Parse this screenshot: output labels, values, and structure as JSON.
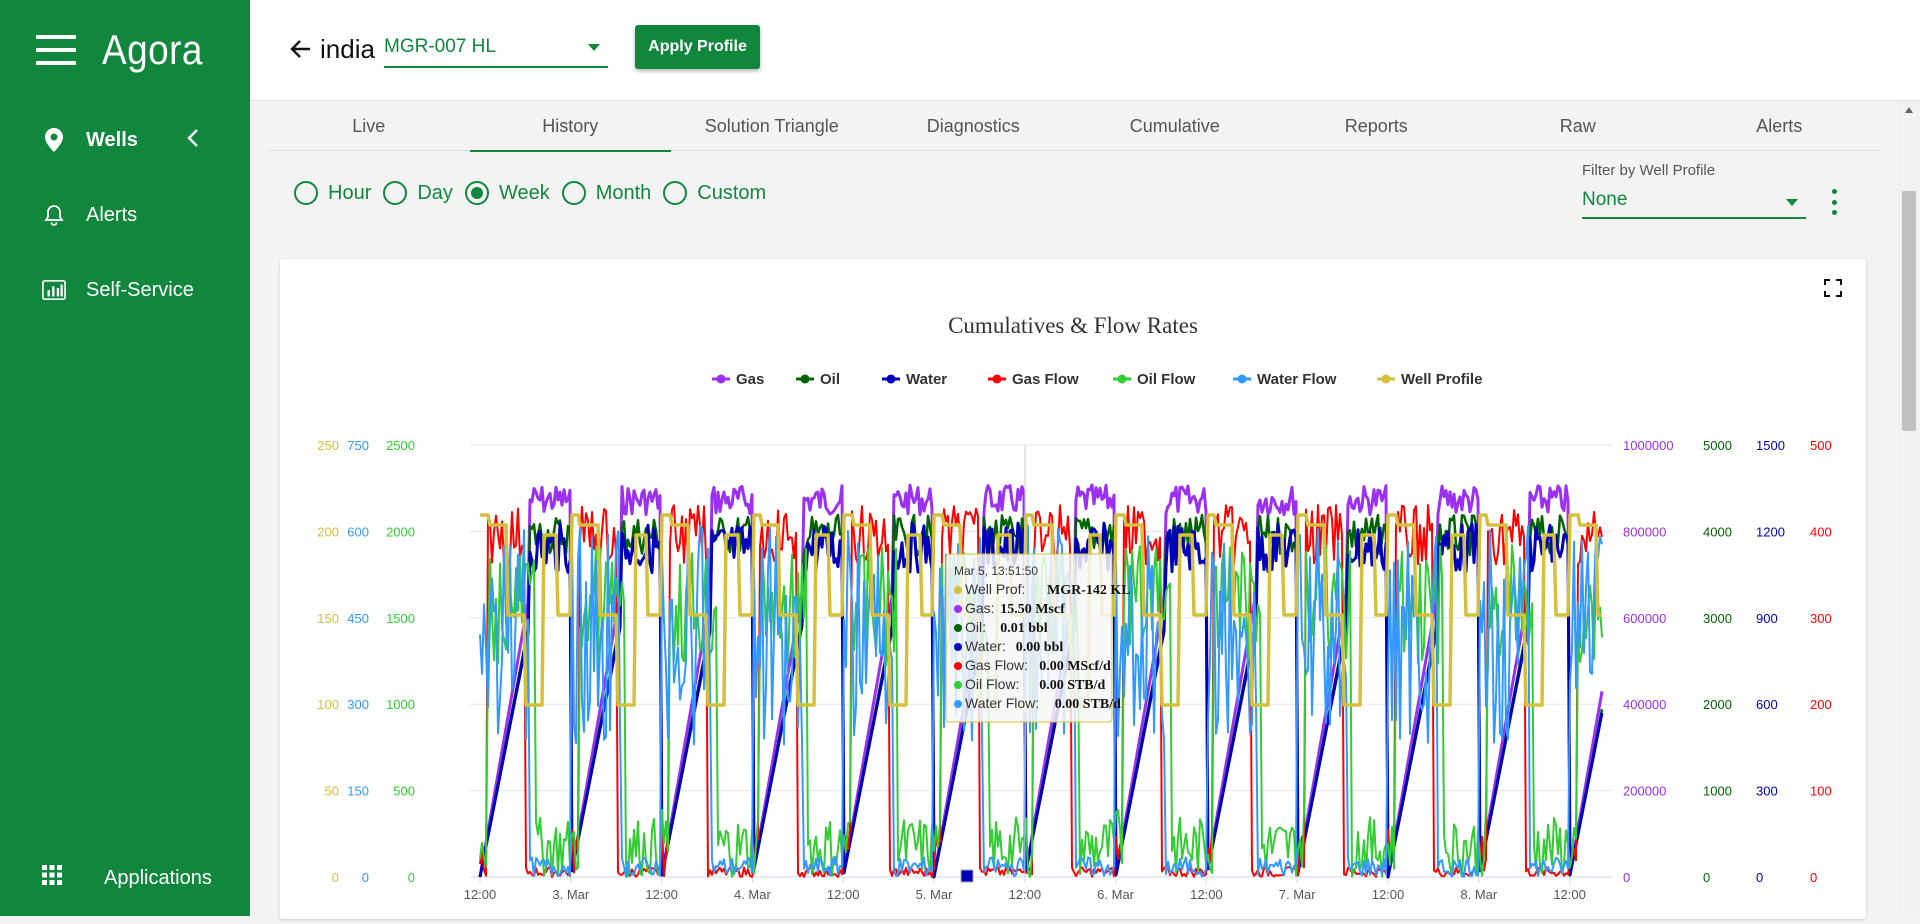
{
  "app": {
    "name": "Agora"
  },
  "sidebar": {
    "items": [
      {
        "label": "Wells",
        "icon": "map-pin-icon"
      },
      {
        "label": "Alerts",
        "icon": "bell-icon"
      },
      {
        "label": "Self-Service",
        "icon": "bar-chart-icon"
      }
    ],
    "apps_label": "Applications"
  },
  "header": {
    "well_name": "india",
    "profile_select": "MGR-007 HL",
    "apply_label": "Apply Profile"
  },
  "tabs": [
    "Live",
    "History",
    "Solution Triangle",
    "Diagnostics",
    "Cumulative",
    "Reports",
    "Raw",
    "Alerts"
  ],
  "active_tab": "History",
  "ranges": [
    "Hour",
    "Day",
    "Week",
    "Month",
    "Custom"
  ],
  "selected_range": "Week",
  "filter": {
    "label": "Filter by Well Profile",
    "value": "None"
  },
  "colors": {
    "brand": "#10873d",
    "gas": "#9b30f0",
    "oil": "#006400",
    "water": "#0000b8",
    "gas_flow": "#ff0000",
    "oil_flow": "#33cc33",
    "water_flow": "#3399ff",
    "well_profile": "#d4c03c"
  },
  "chart_data": {
    "type": "line",
    "title": "Cumulatives & Flow Rates",
    "legend": [
      "Gas",
      "Oil",
      "Water",
      "Gas Flow",
      "Oil Flow",
      "Water Flow",
      "Well Profile"
    ],
    "legend_position": "top",
    "x_ticks": [
      "12:00",
      "3. Mar",
      "12:00",
      "4. Mar",
      "12:00",
      "5. Mar",
      "12:00",
      "6. Mar",
      "12:00",
      "7. Mar",
      "12:00",
      "8. Mar",
      "12:00"
    ],
    "left_axes": [
      {
        "series": "Well Profile",
        "ticks": [
          "250",
          "200",
          "150",
          "100",
          "50",
          "0"
        ],
        "color": "#d4c03c"
      },
      {
        "series": "Water Flow",
        "ticks": [
          "750",
          "600",
          "450",
          "300",
          "150",
          "0"
        ],
        "color": "#3399ff"
      },
      {
        "series": "Oil Flow",
        "ticks": [
          "2500",
          "2000",
          "1500",
          "1000",
          "500",
          "0"
        ],
        "color": "#33cc33"
      }
    ],
    "right_axes": [
      {
        "series": "Gas",
        "ticks": [
          "1000000",
          "800000",
          "600000",
          "400000",
          "200000",
          "0"
        ],
        "color": "#9b30f0"
      },
      {
        "series": "Oil",
        "ticks": [
          "5000",
          "4000",
          "3000",
          "2000",
          "1000",
          "0"
        ],
        "color": "#006400"
      },
      {
        "series": "Water",
        "ticks": [
          "1500",
          "1200",
          "900",
          "600",
          "300",
          "0"
        ],
        "color": "#0000b8"
      },
      {
        "series": "Gas Flow",
        "ticks": [
          "500",
          "400",
          "300",
          "200",
          "100",
          "0"
        ],
        "color": "#ff0000"
      }
    ],
    "grid": true,
    "tooltip": {
      "title": "Mar 5, 13:51:50",
      "rows": [
        {
          "label": "Well Prof",
          "value": "MGR-142 KL",
          "color": "#d4c03c"
        },
        {
          "label": "Gas",
          "value": "15.50 Mscf",
          "color": "#9b30f0"
        },
        {
          "label": "Oil",
          "value": "0.01 bbl",
          "color": "#006400"
        },
        {
          "label": "Water",
          "value": "0.00 bbl",
          "color": "#0000b8"
        },
        {
          "label": "Gas Flow",
          "value": "0.00 MScf/d",
          "color": "#ff0000"
        },
        {
          "label": "Oil Flow",
          "value": "0.00 STB/d",
          "color": "#33cc33"
        },
        {
          "label": "Water Flow",
          "value": "0.00 STB/d",
          "color": "#3399ff"
        }
      ]
    }
  }
}
